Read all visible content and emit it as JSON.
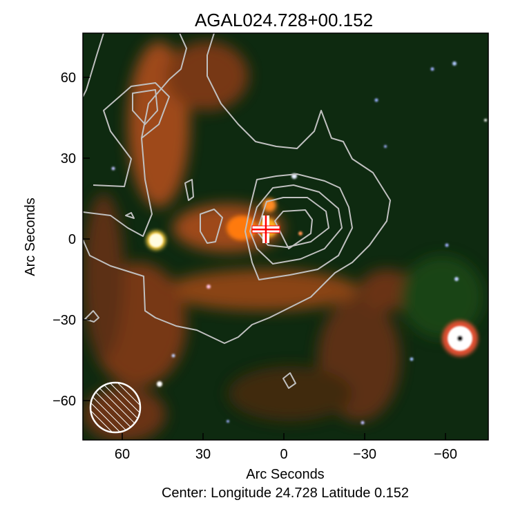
{
  "chart_data": {
    "type": "image",
    "title": "AGAL024.728+00.152",
    "xlabel": "Arc Seconds",
    "ylabel": "Arc Seconds",
    "footer": "Center:  Longitude 24.728 Latitude 0.152",
    "xlim": [
      75,
      -75
    ],
    "ylim": [
      -75,
      75
    ],
    "xticks": [
      60,
      30,
      0,
      -30,
      -60
    ],
    "yticks": [
      60,
      30,
      0,
      -30,
      -60
    ],
    "xtick_labels": [
      "60",
      "30",
      "0",
      "−30",
      "−60"
    ],
    "ytick_labels": [
      "60",
      "30",
      "0",
      "−30",
      "−60"
    ],
    "marker": {
      "type": "cross",
      "x": 7,
      "y": 4,
      "color": "#ff0000"
    },
    "contour_color": "#c0c0c0",
    "beam": {
      "x": 62,
      "y": -62,
      "style": "hatched circle"
    }
  }
}
